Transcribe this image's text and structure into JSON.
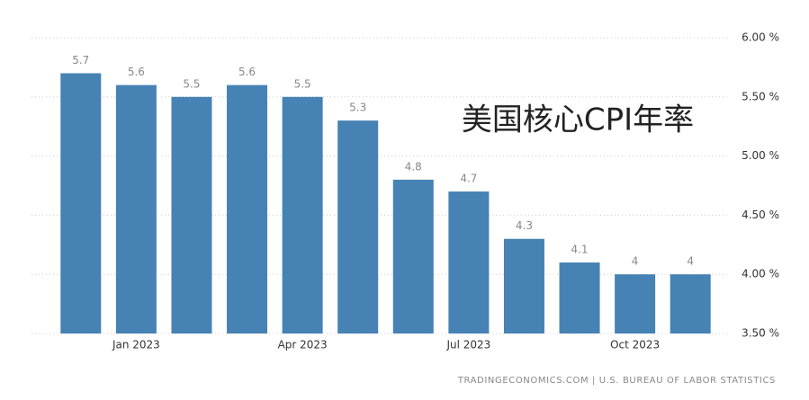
{
  "chart_data": {
    "type": "bar",
    "annotation": "美国核心CPI年率",
    "source": "TRADINGECONOMICS.COM | U.S. BUREAU OF LABOR STATISTICS",
    "categories": [
      null,
      "Jan 2023",
      null,
      null,
      "Apr 2023",
      null,
      null,
      "Jul 2023",
      null,
      null,
      "Oct 2023",
      null
    ],
    "values": [
      5.7,
      5.6,
      5.5,
      5.6,
      5.5,
      5.3,
      4.8,
      4.7,
      4.3,
      4.1,
      4,
      4
    ],
    "color": "#4682b4",
    "ylim": [
      3.5,
      6.0
    ],
    "yticks": [
      {
        "value": 3.5,
        "label": "3.50 %"
      },
      {
        "value": 4.0,
        "label": "4.00 %"
      },
      {
        "value": 4.5,
        "label": "4.50 %"
      },
      {
        "value": 5.0,
        "label": "5.00 %"
      },
      {
        "value": 5.5,
        "label": "5.50 %"
      },
      {
        "value": 6.0,
        "label": "6.00 %"
      }
    ],
    "grid": true
  }
}
